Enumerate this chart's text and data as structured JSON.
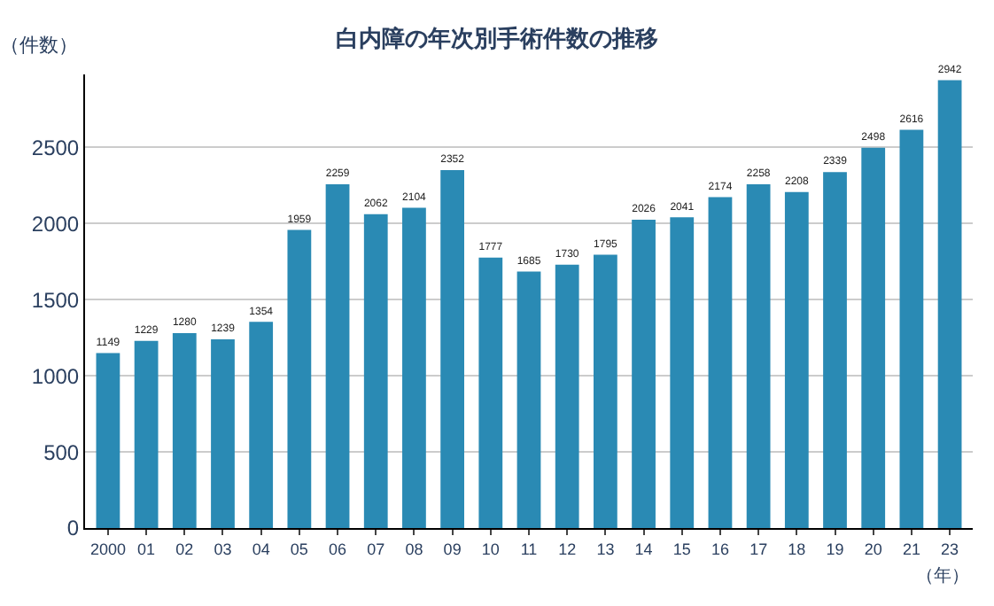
{
  "chart_data": {
    "type": "bar",
    "title": "白内障の年次別手術件数の推移",
    "ylabel": "（件数）",
    "xlabel": "（年）",
    "categories": [
      "2000",
      "01",
      "02",
      "03",
      "04",
      "05",
      "06",
      "07",
      "08",
      "09",
      "10",
      "11",
      "12",
      "13",
      "14",
      "15",
      "16",
      "17",
      "18",
      "19",
      "20",
      "21",
      "23"
    ],
    "values": [
      1149,
      1229,
      1280,
      1239,
      1354,
      1959,
      2259,
      2062,
      2104,
      2352,
      1777,
      1685,
      1730,
      1795,
      2026,
      2041,
      2174,
      2258,
      2208,
      2339,
      2498,
      2616,
      2942
    ],
    "color": "#2a8ab4",
    "ylim": [
      0,
      2980
    ],
    "yticks": [
      0,
      500,
      1000,
      1500,
      2000,
      2500
    ],
    "grid": "y",
    "data_labels": true
  }
}
